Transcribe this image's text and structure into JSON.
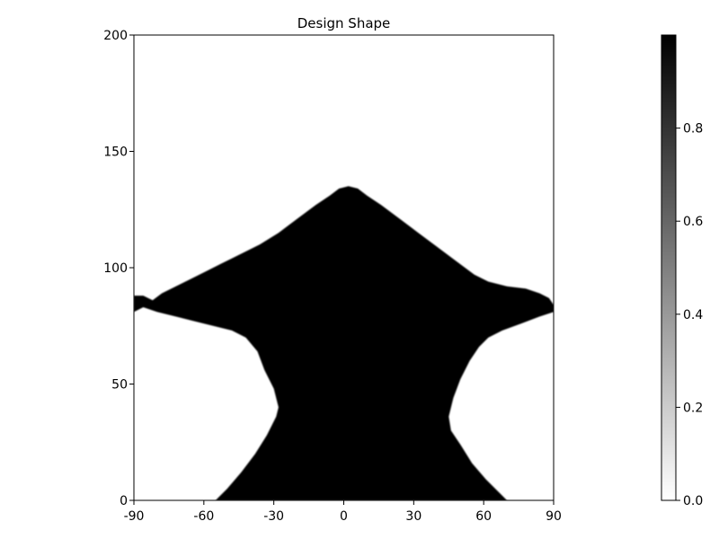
{
  "chart_data": {
    "type": "heatmap",
    "title": "Design Shape",
    "xlabel": "",
    "ylabel": "",
    "xlim": [
      -90,
      90
    ],
    "ylim": [
      0,
      200
    ],
    "x_ticks": [
      -90,
      -60,
      -30,
      0,
      30,
      60,
      90
    ],
    "y_ticks": [
      0,
      50,
      100,
      150,
      200
    ],
    "colormap": [
      "#ffffff",
      "#000000"
    ],
    "colorbar": {
      "range": [
        0.0,
        1.0
      ],
      "ticks": [
        0.0,
        0.2,
        0.4,
        0.6,
        0.8
      ],
      "tick_labels": [
        "0.0",
        "0.2",
        "0.4",
        "0.6",
        "0.8"
      ]
    },
    "shape_value": 1.0,
    "background_value": 0.0,
    "shape_outline": [
      [
        -55,
        0
      ],
      [
        -50,
        5
      ],
      [
        -44,
        12
      ],
      [
        -38,
        20
      ],
      [
        -33,
        28
      ],
      [
        -29,
        36
      ],
      [
        -28,
        40
      ],
      [
        -30,
        48
      ],
      [
        -34,
        56
      ],
      [
        -37,
        64
      ],
      [
        -42,
        70
      ],
      [
        -48,
        73
      ],
      [
        -56,
        75
      ],
      [
        -64,
        77
      ],
      [
        -72,
        79
      ],
      [
        -80,
        81
      ],
      [
        -86,
        83
      ],
      [
        -90,
        81
      ],
      [
        -90,
        88
      ],
      [
        -86,
        88
      ],
      [
        -82,
        86
      ],
      [
        -78,
        89
      ],
      [
        -72,
        92
      ],
      [
        -66,
        95
      ],
      [
        -60,
        98
      ],
      [
        -52,
        102
      ],
      [
        -44,
        106
      ],
      [
        -36,
        110
      ],
      [
        -28,
        115
      ],
      [
        -20,
        121
      ],
      [
        -12,
        127
      ],
      [
        -6,
        131
      ],
      [
        -2,
        134
      ],
      [
        2,
        135
      ],
      [
        6,
        134
      ],
      [
        10,
        131
      ],
      [
        16,
        127
      ],
      [
        24,
        121
      ],
      [
        32,
        115
      ],
      [
        40,
        109
      ],
      [
        48,
        103
      ],
      [
        56,
        97
      ],
      [
        62,
        94
      ],
      [
        70,
        92
      ],
      [
        78,
        91
      ],
      [
        84,
        89
      ],
      [
        88,
        87
      ],
      [
        90,
        84
      ],
      [
        90,
        81
      ],
      [
        84,
        79
      ],
      [
        76,
        76
      ],
      [
        68,
        73
      ],
      [
        62,
        70
      ],
      [
        58,
        66
      ],
      [
        54,
        60
      ],
      [
        50,
        52
      ],
      [
        47,
        44
      ],
      [
        45,
        36
      ],
      [
        46,
        30
      ],
      [
        50,
        24
      ],
      [
        55,
        16
      ],
      [
        61,
        9
      ],
      [
        66,
        4
      ],
      [
        70,
        0
      ]
    ]
  }
}
